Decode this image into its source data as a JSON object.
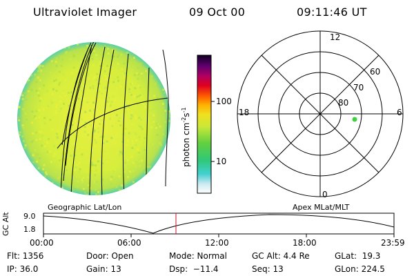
{
  "header": {
    "instrument": "Ultraviolet Imager",
    "date": "09 Oct 00",
    "time": "09:11:46 UT"
  },
  "colorbar": {
    "unit_label": "photon cm",
    "unit_sup1": "-2",
    "unit_mid": "s",
    "unit_sup2": "-1",
    "tick_high": "100",
    "tick_low": "10"
  },
  "polar_plot": {
    "mlt_labels": {
      "top": "12",
      "left": "18",
      "right": "6",
      "bottom": "0"
    },
    "lat_labels": [
      "60",
      "70",
      "80"
    ]
  },
  "panels": {
    "left_caption": "Geographic Lat/Lon",
    "right_caption": "Apex MLat/MLT"
  },
  "altitude_plot": {
    "axis_label": "GC Alt",
    "y_top": "9.0",
    "y_bottom": "1.8",
    "time_ticks": [
      "00:00",
      "06:00",
      "12:00",
      "18:00",
      "23:59"
    ],
    "current_time_color": "#c8102e"
  },
  "status": {
    "flt": "Flt: 1356",
    "ip": "IP: 36.0",
    "door": "Door: Open",
    "gain": "Gain: 13",
    "mode": "Mode: Normal",
    "dsp": "Dsp:  −11.4",
    "gc_alt": "GC Alt: 4.4 Re",
    "seq": "Seq: 13",
    "glat": "GLat:  19.3",
    "glon": "GLon: 224.5"
  }
}
